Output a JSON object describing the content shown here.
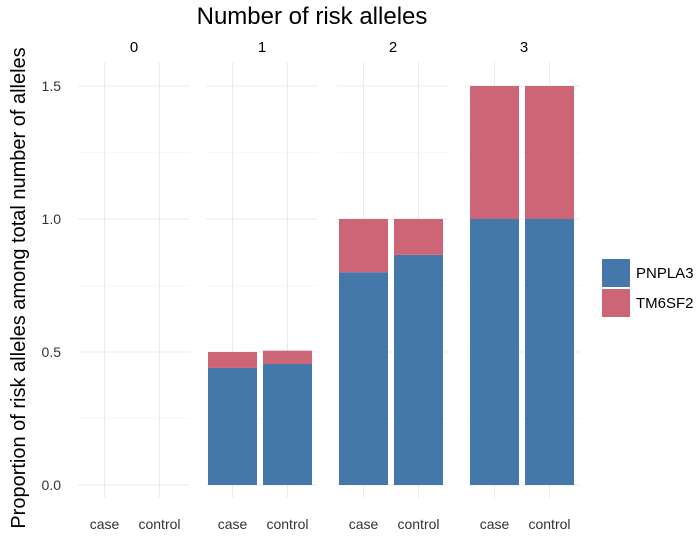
{
  "chart_data": {
    "type": "bar",
    "stacked": true,
    "title": "Number of risk alleles",
    "ylabel": "Proportion of risk alleles among total number of alleles",
    "xlabel": "",
    "ylim": [
      0,
      1.5
    ],
    "yticks": [
      "0.0",
      "0.5",
      "1.0",
      "1.5"
    ],
    "ytick_values": [
      0,
      0.5,
      1.0,
      1.5
    ],
    "facets": [
      "0",
      "1",
      "2",
      "3"
    ],
    "categories": [
      "case",
      "control"
    ],
    "colors": {
      "PNPLA3": "#4477aa",
      "TM6SF2": "#cc6677"
    },
    "legend": [
      "PNPLA3",
      "TM6SF2"
    ],
    "legend_position": "right",
    "series": [
      {
        "name": "PNPLA3",
        "values": [
          [
            0,
            0
          ],
          [
            0.44,
            0.455
          ],
          [
            0.8,
            0.865
          ],
          [
            1.0,
            1.0
          ]
        ]
      },
      {
        "name": "TM6SF2",
        "values": [
          [
            0,
            0
          ],
          [
            0.06,
            0.05
          ],
          [
            0.2,
            0.135
          ],
          [
            0.5,
            0.5
          ]
        ]
      }
    ]
  }
}
